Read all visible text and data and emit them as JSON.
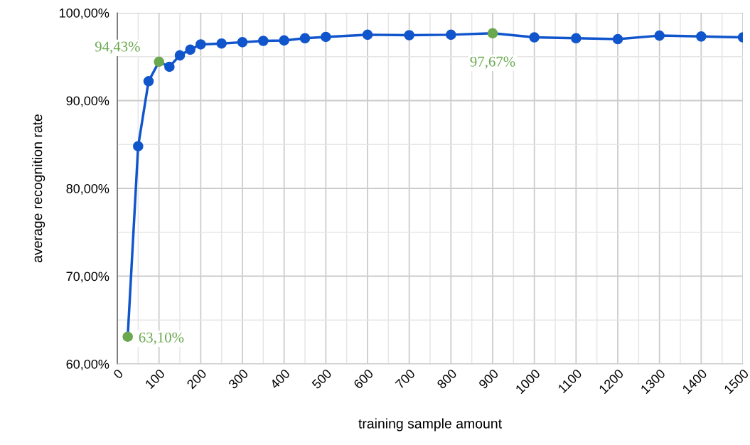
{
  "chart_data": {
    "type": "line",
    "xlabel": "training sample amount",
    "ylabel": "average recognition rate",
    "x": [
      25,
      50,
      75,
      100,
      125,
      150,
      175,
      200,
      250,
      300,
      350,
      400,
      450,
      500,
      600,
      700,
      800,
      900,
      1000,
      1100,
      1200,
      1300,
      1400,
      1500
    ],
    "series": [
      {
        "color": "#1155cc",
        "colors": [
          "#6aa84f",
          "#1155cc",
          "#1155cc",
          "#6aa84f",
          "#1155cc",
          "#1155cc",
          "#1155cc",
          "#1155cc",
          "#1155cc",
          "#1155cc",
          "#1155cc",
          "#1155cc",
          "#1155cc",
          "#1155cc",
          "#1155cc",
          "#1155cc",
          "#1155cc",
          "#6aa84f",
          "#1155cc",
          "#1155cc",
          "#1155cc",
          "#1155cc",
          "#1155cc",
          "#1155cc"
        ],
        "values": [
          63.1,
          84.8,
          92.2,
          94.43,
          93.85,
          95.15,
          95.8,
          96.4,
          96.5,
          96.65,
          96.8,
          96.85,
          97.1,
          97.25,
          97.5,
          97.45,
          97.5,
          97.67,
          97.2,
          97.1,
          97.0,
          97.4,
          97.3,
          97.2
        ]
      }
    ],
    "annotations": [
      {
        "text": "63,10%",
        "x": 25,
        "y": 63.1
      },
      {
        "text": "94,43%",
        "x": 100,
        "y": 94.43
      },
      {
        "text": "97,67%",
        "x": 900,
        "y": 97.67
      }
    ],
    "xlim": [
      0,
      1500
    ],
    "xticks": [
      0,
      100,
      200,
      300,
      400,
      500,
      600,
      700,
      800,
      900,
      1000,
      1100,
      1200,
      1300,
      1400,
      1500
    ],
    "ylim": [
      60,
      100
    ],
    "yticks": [
      {
        "value": 60,
        "label": "60,00%"
      },
      {
        "value": 70,
        "label": "70,00%"
      },
      {
        "value": 80,
        "label": "80,00%"
      },
      {
        "value": 90,
        "label": "90,00%"
      },
      {
        "value": 100,
        "label": "100,00%"
      }
    ],
    "grid": true,
    "marker": "circle",
    "line_style": "solid"
  }
}
